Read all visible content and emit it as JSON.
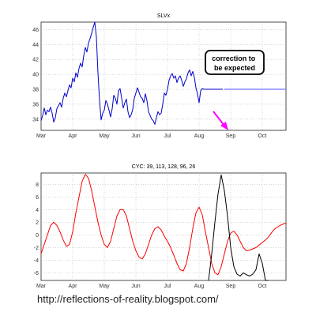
{
  "colors": {
    "slvx_line": "#0000cc",
    "projection_line": "#8888ff",
    "annotation_arrow": "#ff00ff",
    "cycle_composite": "#ff0000",
    "cycle_actual": "#000000",
    "grid": "#aaaaaa"
  },
  "footer_url": "http://reflections-of-reality.blogspot.com/",
  "chart_data": [
    {
      "type": "line",
      "title": "SLVx",
      "xlabel": "",
      "ylabel": "",
      "grid": true,
      "x_ticks": [
        "Mar",
        "Apr",
        "May",
        "Jun",
        "Jul",
        "Aug",
        "Sep",
        "Oct"
      ],
      "xlim_months": [
        0,
        7.75
      ],
      "ylim": [
        32.5,
        47
      ],
      "y_ticks": [
        34,
        36,
        38,
        40,
        42,
        44,
        46
      ],
      "annotation": "correction to be expected",
      "series": [
        {
          "role": "price",
          "x": [
            0.0,
            0.05,
            0.1,
            0.15,
            0.2,
            0.25,
            0.3,
            0.35,
            0.4,
            0.45,
            0.5,
            0.55,
            0.6,
            0.65,
            0.7,
            0.75,
            0.8,
            0.85,
            0.9,
            0.95,
            1.0,
            1.05,
            1.1,
            1.15,
            1.2,
            1.25,
            1.3,
            1.35,
            1.4,
            1.45,
            1.5,
            1.55,
            1.6,
            1.65,
            1.7,
            1.75,
            1.8,
            1.85,
            1.9,
            1.95,
            2.0,
            2.05,
            2.1,
            2.15,
            2.2,
            2.25,
            2.3,
            2.35,
            2.4,
            2.45,
            2.5,
            2.55,
            2.6,
            2.65,
            2.7,
            2.75,
            2.8,
            2.85,
            2.9,
            2.95,
            3.0,
            3.05,
            3.1,
            3.15,
            3.2,
            3.25,
            3.3,
            3.35,
            3.4,
            3.45,
            3.5,
            3.55,
            3.6,
            3.65,
            3.7,
            3.75,
            3.8,
            3.85,
            3.9,
            3.95,
            4.0,
            4.05,
            4.1,
            4.15,
            4.2,
            4.25,
            4.3,
            4.35,
            4.4,
            4.45,
            4.5,
            4.55,
            4.6,
            4.65,
            4.7,
            4.75,
            4.8,
            4.85,
            4.9,
            4.95,
            5.0,
            5.05,
            5.1,
            5.15,
            5.2,
            5.25,
            5.3,
            5.35,
            5.4,
            5.45,
            5.5,
            5.55,
            5.6,
            5.65,
            5.7,
            5.75
          ],
          "y": [
            33.8,
            34.5,
            35.5,
            34.6,
            35.2,
            35.0,
            35.6,
            34.8,
            33.6,
            34.2,
            35.4,
            35.8,
            36.2,
            35.6,
            36.8,
            37.5,
            37.0,
            37.8,
            38.6,
            38.2,
            39.5,
            39.0,
            40.2,
            39.6,
            40.8,
            41.5,
            41.0,
            42.5,
            43.6,
            43.0,
            44.2,
            44.8,
            45.5,
            46.3,
            47.2,
            45.0,
            40.2,
            36.5,
            33.9,
            34.8,
            35.2,
            36.5,
            36.0,
            35.2,
            34.3,
            35.4,
            37.2,
            36.8,
            36.0,
            37.8,
            38.1,
            36.8,
            35.5,
            36.2,
            36.7,
            35.0,
            34.2,
            34.6,
            35.3,
            36.8,
            37.5,
            38.2,
            37.6,
            37.0,
            36.8,
            36.2,
            37.4,
            36.5,
            35.0,
            34.5,
            34.0,
            33.8,
            33.3,
            34.2,
            35.0,
            34.6,
            34.8,
            36.0,
            37.5,
            37.2,
            38.0,
            39.2,
            39.8,
            40.1,
            39.5,
            39.8,
            38.9,
            39.5,
            39.8,
            39.2,
            38.4,
            39.0,
            39.4,
            40.2,
            40.6,
            39.8,
            40.4,
            39.6,
            38.2,
            37.4,
            36.2,
            37.8,
            38.1,
            38.0,
            38.0,
            38.0,
            38.0,
            38.0,
            38.0,
            38.0,
            38.0,
            38.0,
            38.0,
            38.0,
            38.0,
            38.0
          ]
        },
        {
          "role": "projection",
          "x": [
            5.8,
            7.75
          ],
          "y": [
            38.0,
            38.0
          ]
        }
      ]
    },
    {
      "type": "line",
      "title": "CYC: 39, 113, 128, 96, 26",
      "xlabel": "",
      "ylabel": "",
      "grid": true,
      "x_ticks": [
        "Mar",
        "Apr",
        "May",
        "Jun",
        "Jul",
        "Aug",
        "Sep",
        "Oct"
      ],
      "xlim_months": [
        0,
        7.75
      ],
      "ylim": [
        -7.2,
        9.8
      ],
      "y_ticks": [
        -6,
        -4,
        -2,
        0,
        2,
        4,
        6,
        8
      ],
      "series": [
        {
          "role": "composite",
          "x": [
            0.0,
            0.1,
            0.2,
            0.3,
            0.4,
            0.5,
            0.6,
            0.7,
            0.8,
            0.9,
            1.0,
            1.1,
            1.2,
            1.3,
            1.4,
            1.5,
            1.6,
            1.7,
            1.8,
            1.9,
            2.0,
            2.1,
            2.2,
            2.3,
            2.4,
            2.5,
            2.6,
            2.7,
            2.8,
            2.9,
            3.0,
            3.1,
            3.2,
            3.3,
            3.4,
            3.5,
            3.6,
            3.7,
            3.8,
            3.9,
            4.0,
            4.1,
            4.2,
            4.3,
            4.4,
            4.5,
            4.6,
            4.7,
            4.8,
            4.9,
            5.0,
            5.1,
            5.2,
            5.3,
            5.4,
            5.5,
            5.6,
            5.7,
            5.8,
            5.9,
            6.0,
            6.1,
            6.2,
            6.3,
            6.4,
            6.5,
            6.6,
            6.7,
            6.8,
            6.9,
            7.0,
            7.1,
            7.2,
            7.3,
            7.4,
            7.5,
            7.6,
            7.7,
            7.75
          ],
          "y": [
            -3.0,
            -1.5,
            0.0,
            1.5,
            2.0,
            1.5,
            0.5,
            -0.8,
            -1.8,
            -1.5,
            0.5,
            3.5,
            6.0,
            8.5,
            9.6,
            9.0,
            7.0,
            4.5,
            2.0,
            0.0,
            -1.5,
            -2.0,
            -1.0,
            1.0,
            3.0,
            4.0,
            4.0,
            3.0,
            1.0,
            -1.0,
            -2.5,
            -3.5,
            -3.8,
            -3.0,
            -1.5,
            0.0,
            1.0,
            1.3,
            0.8,
            -0.2,
            -1.0,
            -2.0,
            -3.2,
            -4.5,
            -5.5,
            -5.7,
            -4.5,
            -2.0,
            1.0,
            3.5,
            4.4,
            3.2,
            0.5,
            -2.0,
            -4.5,
            -6.0,
            -6.3,
            -5.0,
            -3.0,
            -1.0,
            0.3,
            0.6,
            0.0,
            -1.0,
            -2.0,
            -2.5,
            -2.4,
            -2.2,
            -2.0,
            -1.6,
            -1.2,
            -0.8,
            -0.3,
            0.4,
            1.0,
            1.3,
            1.6,
            1.8,
            1.9
          ]
        },
        {
          "role": "actual",
          "x": [
            5.3,
            5.4,
            5.5,
            5.6,
            5.7,
            5.8,
            5.9,
            6.0,
            6.1,
            6.2,
            6.3,
            6.4,
            6.5,
            6.6,
            6.7,
            6.8,
            6.9,
            7.0,
            7.1,
            7.2
          ],
          "y": [
            -7.2,
            -3.0,
            2.0,
            6.5,
            9.5,
            7.0,
            3.0,
            -2.0,
            -5.0,
            -6.2,
            -6.5,
            -6.0,
            -6.3,
            -6.5,
            -6.2,
            -5.5,
            -3.0,
            -4.5,
            -7.2,
            -7.2
          ]
        }
      ]
    }
  ]
}
